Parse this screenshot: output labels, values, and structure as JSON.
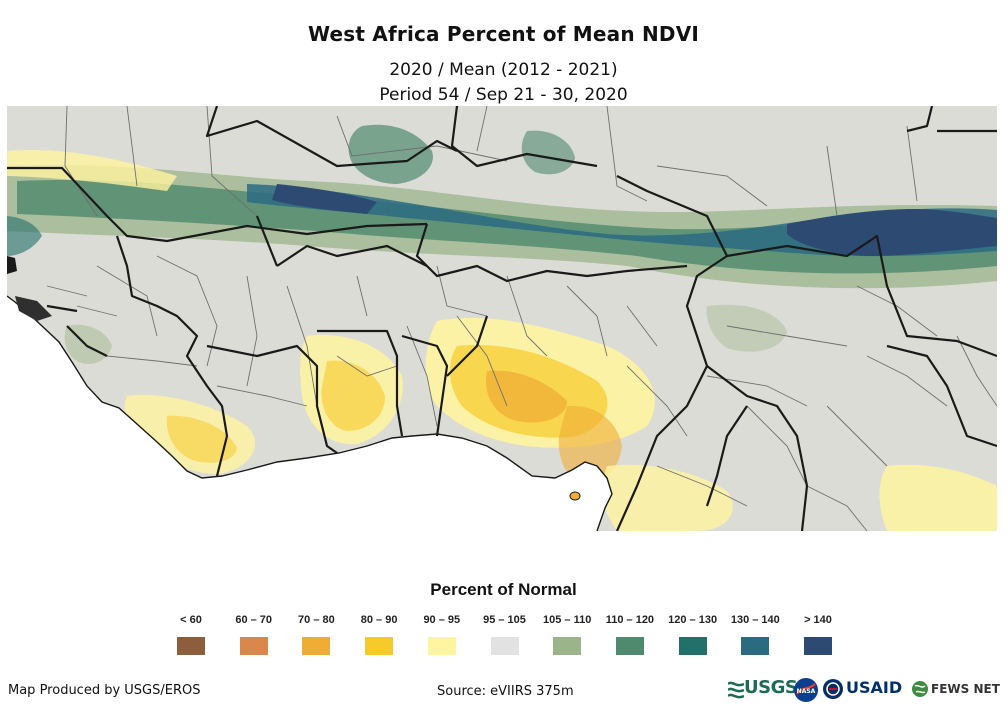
{
  "header": {
    "title": "West Africa Percent of Mean NDVI",
    "subtitle_line1": "2020 / Mean (2012 - 2021)",
    "subtitle_line2": "Period 54 / Sep 21 - 30, 2020"
  },
  "legend": {
    "title": "Percent of Normal",
    "classes": [
      {
        "label": "< 60",
        "color": "#8c5e3c"
      },
      {
        "label": "60 – 70",
        "color": "#d9874a"
      },
      {
        "label": "70 – 80",
        "color": "#f0ad36"
      },
      {
        "label": "80 – 90",
        "color": "#f6ca2a"
      },
      {
        "label": "90 – 95",
        "color": "#fff4a0"
      },
      {
        "label": "95 – 105",
        "color": "#e2e2e2"
      },
      {
        "label": "105 – 110",
        "color": "#9bb48a"
      },
      {
        "label": "110 – 120",
        "color": "#4f8a6e"
      },
      {
        "label": "120 – 130",
        "color": "#22706a"
      },
      {
        "label": "130 – 140",
        "color": "#2b6b82"
      },
      {
        "label": "> 140",
        "color": "#2d4a73"
      }
    ]
  },
  "footer": {
    "credit": "Map Produced by USGS/EROS",
    "source": "Source: eVIIRS 375m"
  },
  "logos": {
    "usgs": "USGS",
    "nasa": "NASA",
    "usaid": "USAID",
    "fewsnet": "FEWS NET"
  },
  "map": {
    "land_color": "#dcdcd6",
    "ocean_color": "#ffffff",
    "border_color": "#1a1a1a",
    "admin_color": "#6f6f6f"
  }
}
